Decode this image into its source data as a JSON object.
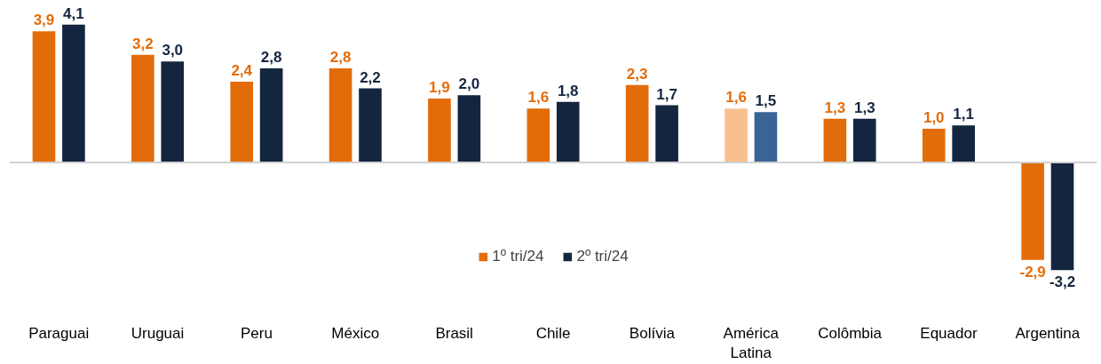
{
  "chart_data": {
    "type": "bar",
    "categories": [
      "Paraguai",
      "Uruguai",
      "Peru",
      "México",
      "Brasil",
      "Chile",
      "Bolívia",
      "América Latina",
      "Colômbia",
      "Equador",
      "Argentina"
    ],
    "series": [
      {
        "name": "1º tri/24",
        "color": "#e36c0a",
        "colors": [
          "#e36c0a",
          "#e36c0a",
          "#e36c0a",
          "#e36c0a",
          "#e36c0a",
          "#e36c0a",
          "#e36c0a",
          "#f9c08f",
          "#e36c0a",
          "#e36c0a",
          "#e36c0a"
        ],
        "values": [
          3.9,
          3.2,
          2.4,
          2.8,
          1.9,
          1.6,
          2.3,
          1.6,
          1.3,
          1.0,
          -2.9
        ],
        "value_labels": [
          "3,9",
          "3,2",
          "2,4",
          "2,8",
          "1,9",
          "1,6",
          "2,3",
          "1,6",
          "1,3",
          "1,0",
          "-2,9"
        ]
      },
      {
        "name": "2º tri/24",
        "color": "#14253f",
        "colors": [
          "#14253f",
          "#14253f",
          "#14253f",
          "#14253f",
          "#14253f",
          "#14253f",
          "#14253f",
          "#3a6496",
          "#14253f",
          "#14253f",
          "#14253f"
        ],
        "values": [
          4.1,
          3.0,
          2.8,
          2.2,
          2.0,
          1.8,
          1.7,
          1.5,
          1.3,
          1.1,
          -3.2
        ],
        "value_labels": [
          "4,1",
          "3,0",
          "2,8",
          "2,2",
          "2,0",
          "1,8",
          "1,7",
          "1,5",
          "1,3",
          "1,1",
          "-3,2"
        ]
      }
    ],
    "legend": "bottom",
    "grid": false
  }
}
